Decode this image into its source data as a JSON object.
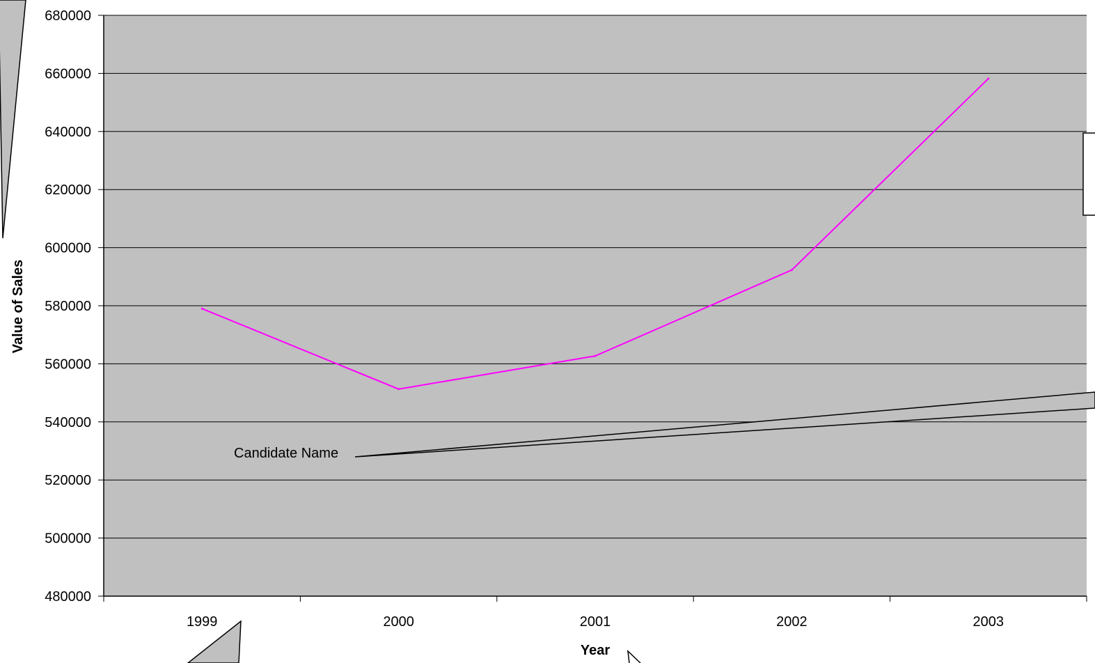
{
  "chart_data": {
    "type": "line",
    "title": "",
    "xlabel": "Year",
    "ylabel": "Value of Sales",
    "categories": [
      "1999",
      "2000",
      "2001",
      "2002",
      "2003"
    ],
    "series": [
      {
        "values": [
          579000,
          551300,
          562700,
          592300,
          658200
        ],
        "color": "#ff00ff"
      }
    ],
    "ylim": [
      480000,
      680000
    ],
    "ytick_step": 20000,
    "grid": true,
    "legend": "none",
    "plot_background": "#c0c0c0",
    "annotations": [
      {
        "text": "Candidate Name"
      }
    ]
  }
}
